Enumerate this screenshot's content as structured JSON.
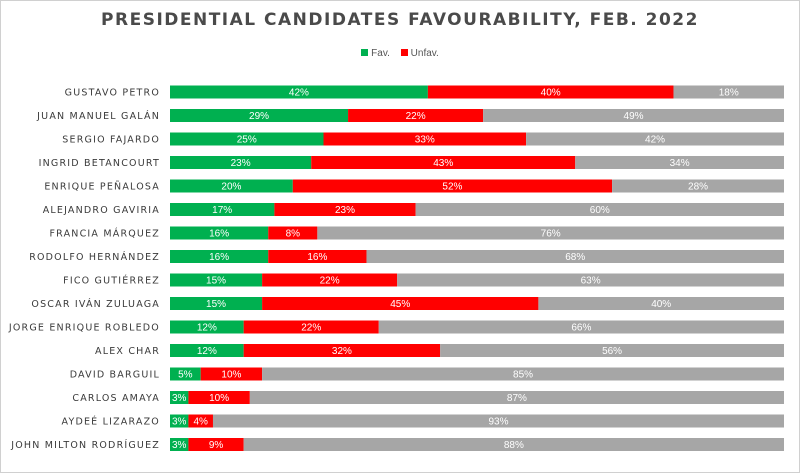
{
  "chart_data": {
    "type": "bar",
    "orientation": "horizontal",
    "stacked": true,
    "title": "PRESIDENTIAL CANDIDATES FAVOURABILITY, FEB. 2022",
    "legend_position": "top",
    "grid": false,
    "xlim": [
      0,
      100
    ],
    "categories": [
      "GUSTAVO PETRO",
      "JUAN MANUEL GALÁN",
      "SERGIO FAJARDO",
      "INGRID BETANCOURT",
      "ENRIQUE PEÑALOSA",
      "ALEJANDRO GAVIRIA",
      "FRANCIA MÁRQUEZ",
      "RODOLFO HERNÁNDEZ",
      "FICO GUTIÉRREZ",
      "OSCAR IVÁN ZULUAGA",
      "JORGE ENRIQUE ROBLEDO",
      "ALEX CHAR",
      "DAVID BARGUIL",
      "CARLOS AMAYA",
      "AYDEÉ LIZARAZO",
      "JOHN MILTON RODRÍGUEZ"
    ],
    "series": [
      {
        "name": "Fav.",
        "color": "#00b050",
        "values": [
          42,
          29,
          25,
          23,
          20,
          17,
          16,
          16,
          15,
          15,
          12,
          12,
          5,
          3,
          3,
          3
        ]
      },
      {
        "name": "Unfav.",
        "color": "#ff0000",
        "values": [
          40,
          22,
          33,
          43,
          52,
          23,
          8,
          16,
          22,
          45,
          22,
          32,
          10,
          10,
          4,
          9
        ]
      },
      {
        "name": "",
        "color": "#a6a6a6",
        "values": [
          18,
          49,
          42,
          34,
          28,
          60,
          76,
          68,
          63,
          40,
          66,
          56,
          85,
          87,
          93,
          88
        ]
      }
    ],
    "value_suffix": "%"
  }
}
